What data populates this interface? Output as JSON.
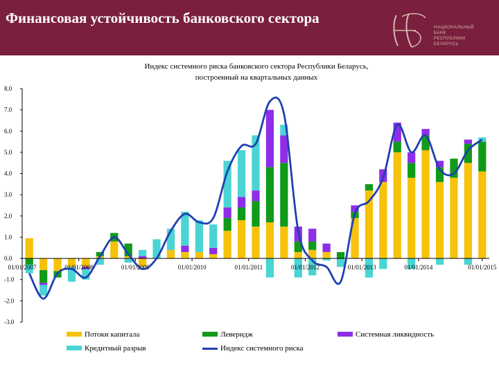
{
  "title": "Финансовая устойчивость банковского сектора",
  "logo": {
    "monogram": "НБ",
    "lines": [
      "НАЦИОНАЛЬНЫЙ",
      "БАНК",
      "РЕСПУБЛИКИ",
      "БЕЛАРУСЬ"
    ]
  },
  "colors": {
    "header_bg": "#7a1f3d",
    "capital_flows": "#f6c20b",
    "leverage": "#109a1a",
    "systemic_liquidity": "#8e2ee8",
    "credit_gap": "#4ad4d4",
    "index_line": "#1f3fb0"
  },
  "chart_data": {
    "type": "bar",
    "title_lines": [
      "Индекс системного риска банковского сектора Республики Беларусь,",
      "построенный на квартальных данных"
    ],
    "ylim": [
      -3.0,
      8.0
    ],
    "ytick_labels": [
      "8.0",
      "7.0",
      "6.0",
      "5.0",
      "4.0",
      "3.0",
      "2.0",
      "1.0",
      "0.0",
      "-1.0",
      "-2.0",
      "-3.0"
    ],
    "ytick_values": [
      8,
      7,
      6,
      5,
      4,
      3,
      2,
      1,
      0,
      -1,
      -2,
      -3
    ],
    "xtick_labels": [
      "01/01/2007",
      "01/01/2008",
      "01/01/2009",
      "01/01/2010",
      "01/01/2011",
      "01/01/2012",
      "01/01/2013",
      "01/01/2014",
      "01/01/2015"
    ],
    "stacked": true,
    "quarters": 33,
    "series": [
      {
        "name": "Потоки капитала",
        "key": "capital",
        "values": [
          0.95,
          -0.55,
          -0.6,
          -0.4,
          -0.4,
          0.1,
          0.8,
          0.1,
          -0.4,
          0.0,
          0.4,
          0.3,
          0.3,
          0.2,
          1.3,
          1.8,
          1.5,
          1.7,
          1.5,
          0.3,
          0.4,
          0.3,
          0.0,
          1.9,
          3.2,
          3.6,
          5.0,
          3.8,
          5.1,
          3.6,
          3.8,
          4.5,
          4.1
        ]
      },
      {
        "name": "Леверидж",
        "key": "leverage",
        "values": [
          -0.3,
          -0.6,
          -0.3,
          0.0,
          0.0,
          0.2,
          0.4,
          0.6,
          0.0,
          0.0,
          0.0,
          0.0,
          0.0,
          0.0,
          0.6,
          0.6,
          1.2,
          2.6,
          3.0,
          0.5,
          0.4,
          0.0,
          0.3,
          0.3,
          0.3,
          0.0,
          0.5,
          0.7,
          0.7,
          0.7,
          0.9,
          0.9,
          1.4
        ]
      },
      {
        "name": "Системная ликвидность",
        "key": "liquidity",
        "values": [
          0.0,
          -0.1,
          0.0,
          0.0,
          -0.1,
          0.0,
          0.0,
          0.0,
          0.1,
          0.0,
          0.0,
          0.3,
          0.0,
          0.3,
          0.5,
          0.5,
          0.5,
          2.7,
          1.3,
          0.7,
          0.6,
          0.4,
          0.0,
          0.3,
          0.0,
          0.6,
          0.9,
          0.5,
          0.3,
          0.3,
          0.0,
          0.2,
          0.0
        ]
      },
      {
        "name": "Кредитный разрыв",
        "key": "credit_gap",
        "values": [
          -0.4,
          -0.5,
          0.0,
          -0.7,
          -0.5,
          -0.3,
          0.0,
          -0.2,
          0.3,
          0.9,
          1.0,
          1.6,
          1.5,
          1.1,
          2.2,
          2.2,
          2.6,
          -0.9,
          0.5,
          -0.9,
          -0.8,
          -0.1,
          -0.4,
          0.0,
          -0.9,
          -0.5,
          0.0,
          -0.5,
          0.0,
          -0.3,
          0.0,
          -0.3,
          0.2
        ]
      }
    ],
    "index_line": {
      "name": "Индекс системного риска",
      "values": [
        -0.7,
        -1.9,
        -0.7,
        -0.5,
        -0.9,
        0.1,
        1.0,
        0.2,
        -0.5,
        0.0,
        1.3,
        2.1,
        1.7,
        1.9,
        4.1,
        5.3,
        5.4,
        7.4,
        6.8,
        1.3,
        -0.1,
        -0.4,
        -1.1,
        2.1,
        2.7,
        3.8,
        6.3,
        5.0,
        5.8,
        4.2,
        4.0,
        5.1,
        5.6
      ]
    },
    "legend": [
      {
        "label": "Потоки капитала",
        "key": "capital"
      },
      {
        "label": "Леверидж",
        "key": "leverage"
      },
      {
        "label": "Системная ликвидность",
        "key": "liquidity"
      },
      {
        "label": "Кредитный разрыв",
        "key": "credit_gap"
      },
      {
        "label": "Индекс системного риска",
        "key": "index_line"
      }
    ],
    "legend_position": "bottom",
    "grid": false
  }
}
